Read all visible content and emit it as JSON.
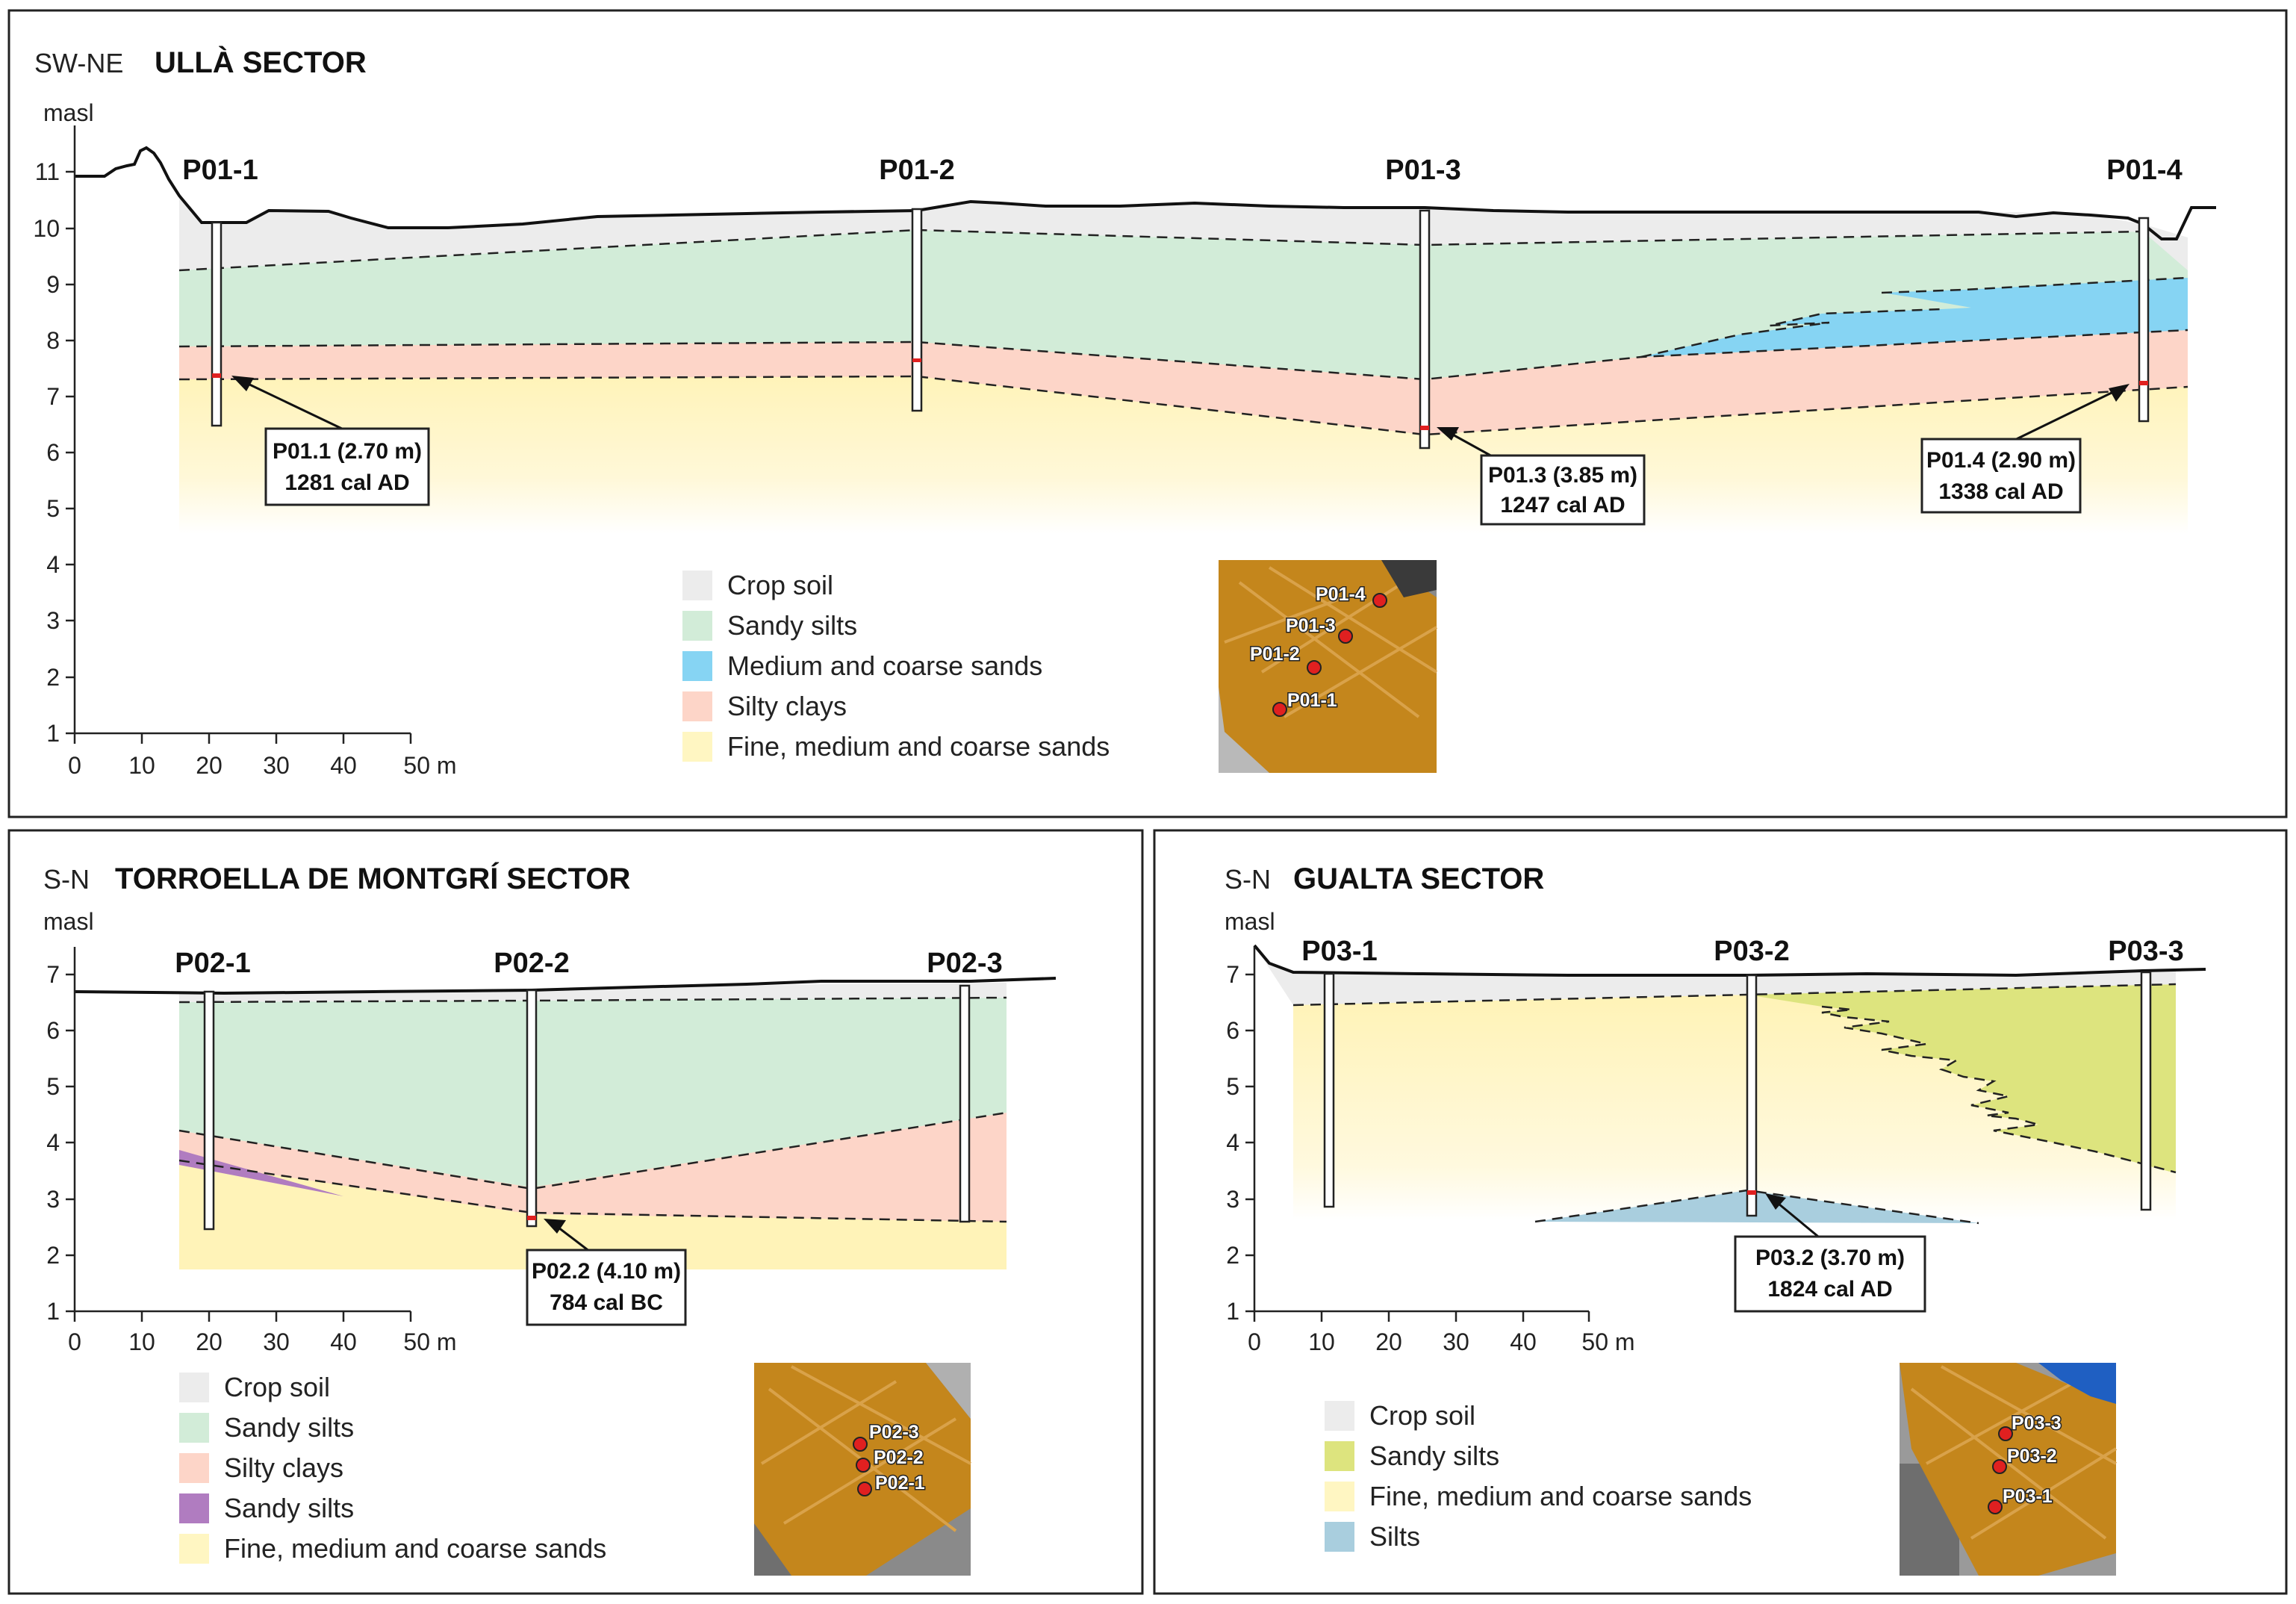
{
  "colors": {
    "crop_soil": "#ececec",
    "sandy_silts_green": "#d2ecd8",
    "medium_coarse_sands": "#86d4f3",
    "silty_clays": "#fdd5c8",
    "fine_sands": "#fff6c2",
    "sandy_silts_purple": "#b07cc0",
    "sandy_silts_olive": "#dde47e",
    "silts": "#a9cede",
    "sample_point": "#e02020",
    "map_orange": "#c4861c"
  },
  "ulla": {
    "direction": "SW-NE",
    "title": "ULLÀ SECTOR",
    "y_unit": "masl",
    "y_ticks": [
      "1",
      "2",
      "3",
      "4",
      "5",
      "6",
      "7",
      "8",
      "9",
      "10",
      "11"
    ],
    "x_ticks": [
      "0",
      "10",
      "20",
      "30",
      "40",
      "50 m"
    ],
    "cores": [
      "P01-1",
      "P01-2",
      "P01-3",
      "P01-4"
    ],
    "callouts": [
      {
        "sample": "P01.1 (2.70 m)",
        "date": "1281 cal AD"
      },
      {
        "sample": "P01.3 (3.85 m)",
        "date": "1247 cal AD"
      },
      {
        "sample": "P01.4 (2.90 m)",
        "date": "1338 cal AD"
      }
    ],
    "legend": [
      "Crop soil",
      "Sandy silts",
      "Medium and coarse sands",
      "Silty clays",
      "Fine, medium and coarse sands"
    ],
    "map_labels": [
      "P01-4",
      "P01-3",
      "P01-2",
      "P01-1"
    ]
  },
  "torroella": {
    "direction": "S-N",
    "title": "TORROELLA DE MONTGRÍ SECTOR",
    "y_unit": "masl",
    "y_ticks": [
      "1",
      "2",
      "3",
      "4",
      "5",
      "6",
      "7"
    ],
    "x_ticks": [
      "0",
      "10",
      "20",
      "30",
      "40",
      "50 m"
    ],
    "cores": [
      "P02-1",
      "P02-2",
      "P02-3"
    ],
    "callouts": [
      {
        "sample": "P02.2 (4.10 m)",
        "date": "784 cal BC"
      }
    ],
    "legend": [
      "Crop soil",
      "Sandy silts",
      "Silty clays",
      "Sandy silts",
      "Fine, medium and coarse sands"
    ],
    "map_labels": [
      "P02-3",
      "P02-2",
      "P02-1"
    ]
  },
  "gualta": {
    "direction": "S-N",
    "title": "GUALTA SECTOR",
    "y_unit": "masl",
    "y_ticks": [
      "1",
      "2",
      "3",
      "4",
      "5",
      "6",
      "7"
    ],
    "x_ticks": [
      "0",
      "10",
      "20",
      "30",
      "40",
      "50 m"
    ],
    "cores": [
      "P03-1",
      "P03-2",
      "P03-3"
    ],
    "callouts": [
      {
        "sample": "P03.2 (3.70 m)",
        "date": "1824 cal AD"
      }
    ],
    "legend": [
      "Crop soil",
      "Sandy silts",
      "Fine, medium and coarse sands",
      "Silts"
    ],
    "map_labels": [
      "P03-3",
      "P03-2",
      "P03-1"
    ]
  }
}
